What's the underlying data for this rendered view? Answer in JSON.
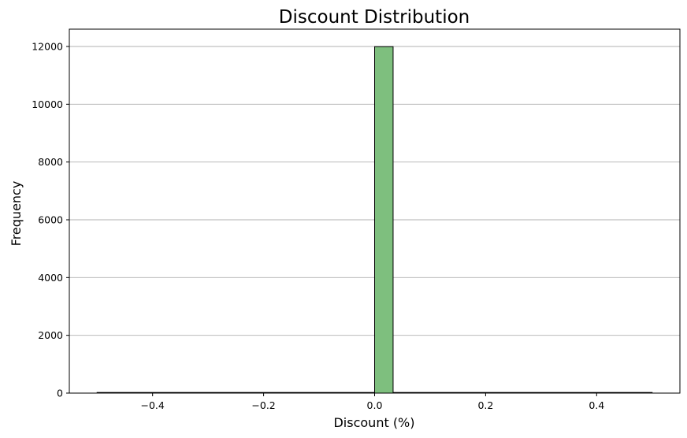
{
  "chart_data": {
    "type": "bar",
    "title": "Discount Distribution",
    "xlabel": "Discount (%)",
    "ylabel": "Frequency",
    "xlim": [
      -0.55,
      0.55
    ],
    "ylim": [
      0,
      12600
    ],
    "grid": "horizontal",
    "bar_color": "#7ebf7e",
    "edge_color": "#000000",
    "bins": [
      {
        "x0": -0.5,
        "x1": 0.0,
        "value": 0
      },
      {
        "x0": 0.0,
        "x1": 0.0333,
        "value": 11994
      },
      {
        "x0": 0.0333,
        "x1": 0.5,
        "value": 0
      }
    ],
    "x_ticks": [
      {
        "value": -0.4,
        "label": "−0.4"
      },
      {
        "value": -0.2,
        "label": "−0.2"
      },
      {
        "value": 0.0,
        "label": "0.0"
      },
      {
        "value": 0.2,
        "label": "0.2"
      },
      {
        "value": 0.4,
        "label": "0.4"
      }
    ],
    "y_ticks": [
      {
        "value": 0,
        "label": "0"
      },
      {
        "value": 2000,
        "label": "2000"
      },
      {
        "value": 4000,
        "label": "4000"
      },
      {
        "value": 6000,
        "label": "6000"
      },
      {
        "value": 8000,
        "label": "8000"
      },
      {
        "value": 10000,
        "label": "10000"
      },
      {
        "value": 12000,
        "label": "12000"
      }
    ]
  }
}
